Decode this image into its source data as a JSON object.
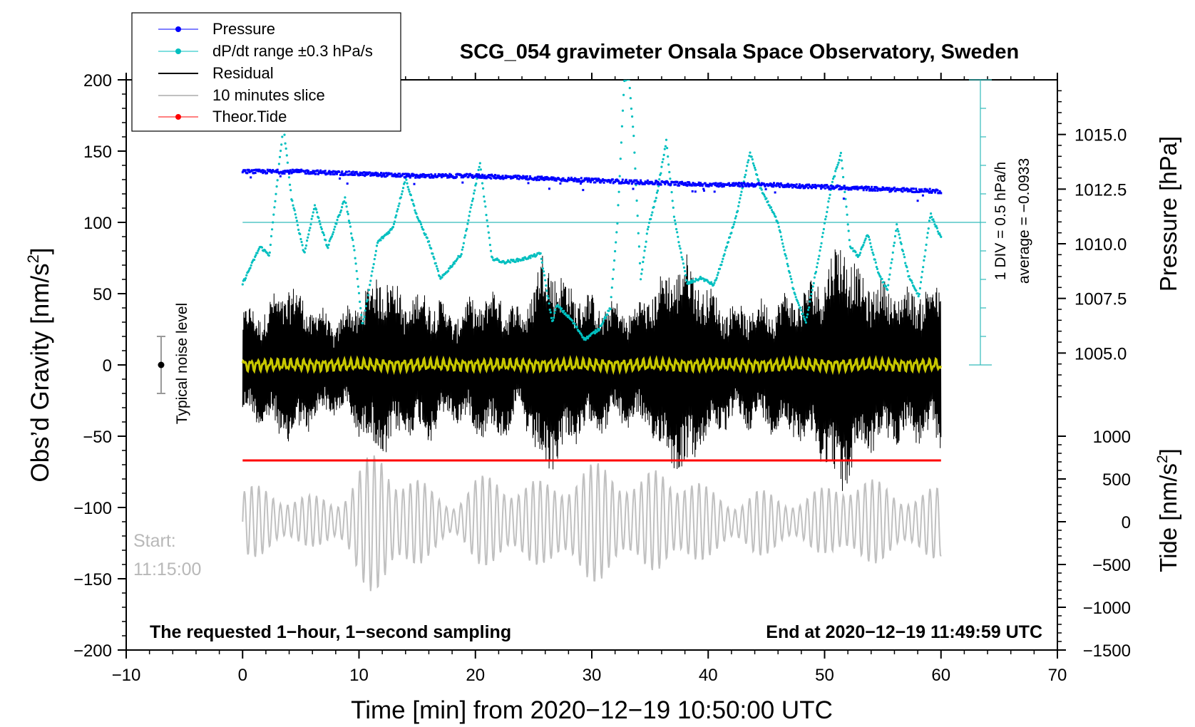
{
  "chart_data": {
    "type": "line",
    "title": "SCG_054 gravimeter Onsala Space Observatory, Sweden",
    "xlabel": "Time [min] from 2020−12−19 10:50:00 UTC",
    "ylabel_left": "Obs’d Gravity [nm/s²]",
    "ylabel_left_main": "Obs’d Gravity [nm/s",
    "ylabel_left_sup": "2",
    "ylabel_left_tail": "]",
    "ylabel_right_top": "Pressure [hPa]",
    "ylabel_right_bottom": "Tide [nm/s²]",
    "ylabel_right_bottom_main": "Tide [nm/s",
    "ylabel_right_bottom_sup": "2",
    "ylabel_right_bottom_tail": "]",
    "xlim": [
      -10,
      70
    ],
    "ylim": [
      -200,
      200
    ],
    "x_ticks": [
      -10,
      0,
      10,
      20,
      30,
      40,
      50,
      60,
      70
    ],
    "x_tick_labels": [
      "−10",
      "0",
      "10",
      "20",
      "30",
      "40",
      "50",
      "60",
      "70"
    ],
    "y_ticks": [
      200,
      150,
      100,
      50,
      0,
      -50,
      -100,
      -150,
      -200
    ],
    "y_tick_labels": [
      "200",
      "150",
      "100",
      "50",
      "0",
      "−50",
      "−100",
      "−150",
      "−200"
    ],
    "pressure_axis": {
      "range": [
        1002.5,
        1017.5
      ],
      "ticks": [
        1015.0,
        1012.5,
        1010.0,
        1007.5,
        1005.0
      ],
      "tick_labels": [
        "1015.0",
        "1012.5",
        "1010.0",
        "1007.5",
        "1005.0"
      ]
    },
    "tide_axis": {
      "range": [
        -1500,
        1000
      ],
      "ticks": [
        1000,
        500,
        0,
        -500,
        -1000,
        -1500
      ],
      "tick_labels": [
        "1000",
        "500",
        "0",
        "−500",
        "−1000",
        "−1500"
      ]
    },
    "legend": {
      "position": "top-left",
      "entries": [
        {
          "label": "Pressure",
          "color": "#0000ff",
          "marker": true
        },
        {
          "label": "dP/dt range ±0.3 hPa/s",
          "color": "#00bfbf",
          "marker": true
        },
        {
          "label": "Residual",
          "color": "#000000",
          "marker": false
        },
        {
          "label": "10 minutes slice",
          "color": "#c0c0c0",
          "marker": false
        },
        {
          "label": "Theor.Tide",
          "color": "#ff0000",
          "marker": true
        }
      ]
    },
    "annotations": {
      "noise_label": "Typical noise level",
      "noise_range": [
        -20,
        20
      ],
      "noise_x": -7,
      "start_label": "Start:",
      "start_time": "11:15:00",
      "bottom_left": "The requested 1−hour, 1−second sampling",
      "bottom_right": "End at 2020−12−19 11:49:59 UTC",
      "div_label": "1 DIV = 0.5 hPa/h",
      "average_label": "average = −0.0933"
    },
    "series": [
      {
        "name": "Pressure",
        "color": "#0000ff",
        "axis": "pressure",
        "x": [
          0,
          5,
          10,
          15,
          20,
          25,
          30,
          35,
          40,
          45,
          50,
          55,
          60
        ],
        "values": [
          1013.3,
          1013.3,
          1013.2,
          1013.1,
          1013.1,
          1013.0,
          1012.9,
          1012.8,
          1012.7,
          1012.7,
          1012.6,
          1012.5,
          1012.4
        ]
      },
      {
        "name": "dP/dt range ±0.3 hPa/s",
        "color": "#00bfbf",
        "axis": "gravity",
        "x": [
          0,
          1.5,
          2.3,
          3.5,
          4.2,
          5.3,
          6.2,
          7.3,
          8.8,
          9.6,
          10.3,
          11.6,
          12.9,
          14.0,
          15.0,
          16.0,
          17.0,
          18.8,
          20.4,
          21.4,
          22.4,
          24.0,
          25.6,
          26.6,
          27.0,
          28.2,
          29.4,
          30.6,
          31.6,
          32.2,
          32.8,
          33.2,
          33.6,
          34.2,
          34.8,
          35.6,
          36.4,
          37.1,
          38.2,
          39.4,
          40.5,
          41.3,
          42.5,
          43.6,
          44.5,
          46.0,
          47.4,
          48.4,
          49.6,
          50.6,
          51.4,
          52.2,
          52.9,
          53.7,
          54.6,
          55.4,
          56.2,
          57.2,
          58.1,
          59.1,
          60.0
        ],
        "values": [
          57,
          83,
          77,
          168,
          117,
          78,
          112,
          82,
          117,
          81,
          27,
          86,
          96,
          131,
          104,
          86,
          60,
          78,
          141,
          75,
          72,
          74,
          78,
          30,
          42,
          32,
          18,
          25,
          40,
          100,
          200,
          200,
          160,
          60,
          95,
          120,
          157,
          102,
          57,
          61,
          56,
          75,
          107,
          149,
          124,
          100,
          50,
          30,
          80,
          126,
          148,
          83,
          76,
          92,
          65,
          52,
          98,
          63,
          48,
          106,
          89
        ]
      },
      {
        "name": "Residual",
        "color": "#000000",
        "axis": "gravity",
        "x": [
          0,
          2,
          4,
          6,
          8,
          10,
          12,
          14,
          16,
          18,
          20,
          22,
          24,
          26,
          27,
          28,
          30,
          32,
          34,
          36,
          38,
          40,
          42,
          44,
          46,
          48,
          50,
          51.5,
          53,
          55,
          57,
          60
        ],
        "values": [
          35,
          40,
          55,
          40,
          30,
          45,
          65,
          45,
          50,
          35,
          45,
          50,
          35,
          80,
          65,
          55,
          45,
          40,
          40,
          60,
          75,
          50,
          40,
          40,
          45,
          50,
          65,
          90,
          60,
          55,
          50,
          55
        ]
      },
      {
        "name": "10 minutes slice",
        "color": "#c0c0c0",
        "axis": "tide",
        "x": [
          0,
          2,
          4,
          6,
          8,
          10,
          12,
          14,
          16,
          18,
          20,
          22,
          24,
          26,
          28,
          30,
          32,
          34,
          36,
          38,
          40,
          42,
          44,
          46,
          48,
          50,
          52,
          54,
          56,
          58,
          60
        ],
        "values": [
          450,
          400,
          350,
          300,
          300,
          700,
          900,
          700,
          400,
          250,
          500,
          600,
          500,
          500,
          650,
          700,
          750,
          500,
          650,
          650,
          400,
          300,
          400,
          350,
          300,
          400,
          600,
          500,
          450,
          350,
          450
        ]
      },
      {
        "name": "Theor.Tide",
        "color": "#ff0000",
        "axis": "gravity",
        "x": [
          0,
          10,
          20,
          30,
          40,
          50,
          60
        ],
        "values": [
          -67,
          -67,
          -67,
          -67,
          -67,
          -67,
          -67
        ]
      }
    ]
  }
}
